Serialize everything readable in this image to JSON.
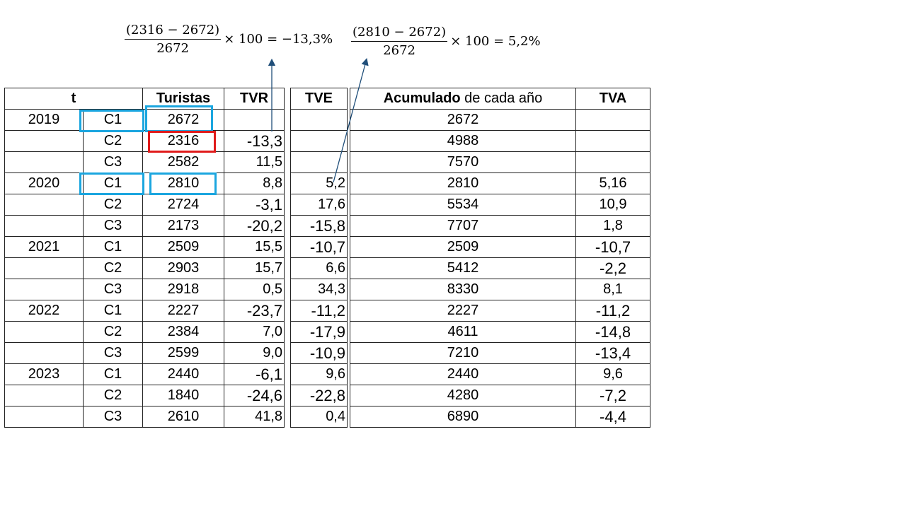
{
  "formulas": [
    {
      "numerator": "(2316  − 2672)",
      "denominator": "2672",
      "rest": "× 100 = −13,3%"
    },
    {
      "numerator": "(2810  − 2672)",
      "denominator": "2672",
      "rest": "× 100 = 5,2%"
    }
  ],
  "table1": {
    "headers": [
      "t",
      "Turistas",
      "TVR"
    ],
    "rows": [
      {
        "year": "2019",
        "q": "C1",
        "turistas": "2672",
        "tvr": ""
      },
      {
        "year": "",
        "q": "C2",
        "turistas": "2316",
        "tvr": "-13,3"
      },
      {
        "year": "",
        "q": "C3",
        "turistas": "2582",
        "tvr": "11,5"
      },
      {
        "year": "2020",
        "q": "C1",
        "turistas": "2810",
        "tvr": "8,8"
      },
      {
        "year": "",
        "q": "C2",
        "turistas": "2724",
        "tvr": "-3,1"
      },
      {
        "year": "",
        "q": "C3",
        "turistas": "2173",
        "tvr": "-20,2"
      },
      {
        "year": "2021",
        "q": "C1",
        "turistas": "2509",
        "tvr": "15,5"
      },
      {
        "year": "",
        "q": "C2",
        "turistas": "2903",
        "tvr": "15,7"
      },
      {
        "year": "",
        "q": "C3",
        "turistas": "2918",
        "tvr": "0,5"
      },
      {
        "year": "2022",
        "q": "C1",
        "turistas": "2227",
        "tvr": "-23,7"
      },
      {
        "year": "",
        "q": "C2",
        "turistas": "2384",
        "tvr": "7,0"
      },
      {
        "year": "",
        "q": "C3",
        "turistas": "2599",
        "tvr": "9,0"
      },
      {
        "year": "2023",
        "q": "C1",
        "turistas": "2440",
        "tvr": "-6,1"
      },
      {
        "year": "",
        "q": "C2",
        "turistas": "1840",
        "tvr": "-24,6"
      },
      {
        "year": "",
        "q": "C3",
        "turistas": "2610",
        "tvr": "41,8"
      }
    ]
  },
  "table2": {
    "header": "TVE",
    "values": [
      "",
      "",
      "",
      "5,2",
      "17,6",
      "-15,8",
      "-10,7",
      "6,6",
      "34,3",
      "-11,2",
      "-17,9",
      "-10,9",
      "9,6",
      "-22,8",
      "0,4"
    ]
  },
  "table3": {
    "header_bold": "Acumulado",
    "header_rest": " de cada año",
    "header_tva": "TVA",
    "rows": [
      {
        "acum": "2672",
        "tva": ""
      },
      {
        "acum": "4988",
        "tva": ""
      },
      {
        "acum": "7570",
        "tva": ""
      },
      {
        "acum": "2810",
        "tva": "5,16"
      },
      {
        "acum": "5534",
        "tva": "10,9"
      },
      {
        "acum": "7707",
        "tva": "1,8"
      },
      {
        "acum": "2509",
        "tva": "-10,7"
      },
      {
        "acum": "5412",
        "tva": "-2,2"
      },
      {
        "acum": "8330",
        "tva": "8,1"
      },
      {
        "acum": "2227",
        "tva": "-11,2"
      },
      {
        "acum": "4611",
        "tva": "-14,8"
      },
      {
        "acum": "7210",
        "tva": "-13,4"
      },
      {
        "acum": "2440",
        "tva": "9,6"
      },
      {
        "acum": "4280",
        "tva": "-7,2"
      },
      {
        "acum": "6890",
        "tva": "-4,4"
      }
    ]
  },
  "colors": {
    "highlight_blue": "#1ba6df",
    "highlight_red": "#e01b1b",
    "arrow": "#1f4e79"
  }
}
